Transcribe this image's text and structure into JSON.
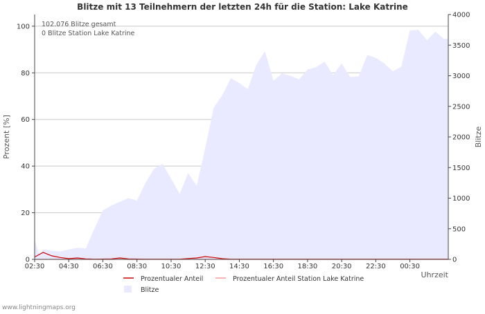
{
  "chart_data": {
    "type": "area",
    "title": "Blitze mit 13 Teilnehmern der letzten 24h für die Station: Lake Katrine",
    "ylabel_left": "Prozent   [%]",
    "ylabel_right": "Blitze",
    "xlabel": "Uhrzeit",
    "annotations": [
      "102.076 Blitze gesamt",
      "0 Blitze Station Lake Katrine"
    ],
    "left_axis": {
      "min": 0,
      "max": 105,
      "ticks": [
        0,
        20,
        40,
        60,
        80,
        100
      ]
    },
    "right_axis": {
      "min": 0,
      "max": 4000,
      "ticks": [
        0,
        500,
        1000,
        1500,
        2000,
        2500,
        3000,
        3500,
        4000
      ]
    },
    "x_axis": {
      "start_hour": 2.5,
      "end_hour": 26.75,
      "tick_hours": [
        2.5,
        4.5,
        6.5,
        8.5,
        10.5,
        12.5,
        14.5,
        16.5,
        18.5,
        20.5,
        22.5,
        24.5
      ],
      "tick_labels": [
        "02:30",
        "04:30",
        "06:30",
        "08:30",
        "10:30",
        "12:30",
        "14:30",
        "16:30",
        "18:30",
        "20:30",
        "22:30",
        "00:30"
      ]
    },
    "colors": {
      "blitze_fill": "#e9e9ff",
      "anteil_line": "#cc0000",
      "anteil_station_line": "#ff9999",
      "grid": "#c8c8c8"
    },
    "legend": [
      "Prozentualer Anteil",
      "Prozentualer Anteil Station Lake Katrine",
      "Blitze"
    ],
    "series": [
      {
        "name": "Blitze",
        "axis": "right",
        "kind": "area",
        "x": [
          2.5,
          2.75,
          3.0,
          3.5,
          4.0,
          4.5,
          5.0,
          5.5,
          6.0,
          6.5,
          7.0,
          7.5,
          8.0,
          8.5,
          9.0,
          9.5,
          10.0,
          10.5,
          11.0,
          11.5,
          12.0,
          12.5,
          13.0,
          13.5,
          14.0,
          14.5,
          15.0,
          15.5,
          16.0,
          16.5,
          17.0,
          17.5,
          18.0,
          18.5,
          19.0,
          19.5,
          20.0,
          20.5,
          21.0,
          21.5,
          22.0,
          22.5,
          23.0,
          23.5,
          24.0,
          24.5,
          25.0,
          25.5,
          26.0,
          26.5,
          26.75
        ],
        "values": [
          320,
          90,
          160,
          140,
          130,
          160,
          190,
          180,
          500,
          800,
          880,
          940,
          1000,
          960,
          1250,
          1480,
          1560,
          1320,
          1070,
          1410,
          1200,
          1820,
          2480,
          2680,
          2960,
          2880,
          2780,
          3180,
          3400,
          2920,
          3040,
          3000,
          2940,
          3100,
          3140,
          3230,
          3010,
          3200,
          2980,
          2990,
          3340,
          3290,
          3200,
          3070,
          3150,
          3740,
          3750,
          3580,
          3720,
          3600,
          3600
        ]
      },
      {
        "name": "Prozentualer Anteil",
        "axis": "left",
        "kind": "line",
        "x": [
          2.5,
          3.0,
          3.5,
          4.0,
          4.5,
          5.0,
          5.5,
          6.0,
          7.0,
          7.5,
          8.0,
          9.0,
          10.0,
          11.0,
          12.0,
          12.5,
          13.0,
          13.5,
          14.0,
          15.0,
          16.0,
          17.0,
          18.0,
          19.0,
          20.0,
          21.0,
          22.0,
          23.0,
          24.0,
          25.0,
          26.0,
          26.75
        ],
        "values": [
          1.0,
          3.0,
          1.5,
          0.8,
          0.3,
          0.6,
          0.2,
          0.1,
          0.2,
          0.6,
          0.2,
          0.1,
          0.1,
          0.1,
          0.6,
          1.2,
          0.8,
          0.3,
          0.1,
          0.1,
          0.1,
          0.1,
          0.1,
          0.1,
          0.1,
          0.1,
          0.1,
          0.1,
          0.1,
          0.1,
          0.1,
          0.1
        ]
      },
      {
        "name": "Prozentualer Anteil Station Lake Katrine",
        "axis": "left",
        "kind": "line",
        "x": [
          2.5,
          26.75
        ],
        "values": [
          0,
          0
        ]
      }
    ]
  },
  "footer": {
    "watermark": "www.lightningmaps.org"
  }
}
